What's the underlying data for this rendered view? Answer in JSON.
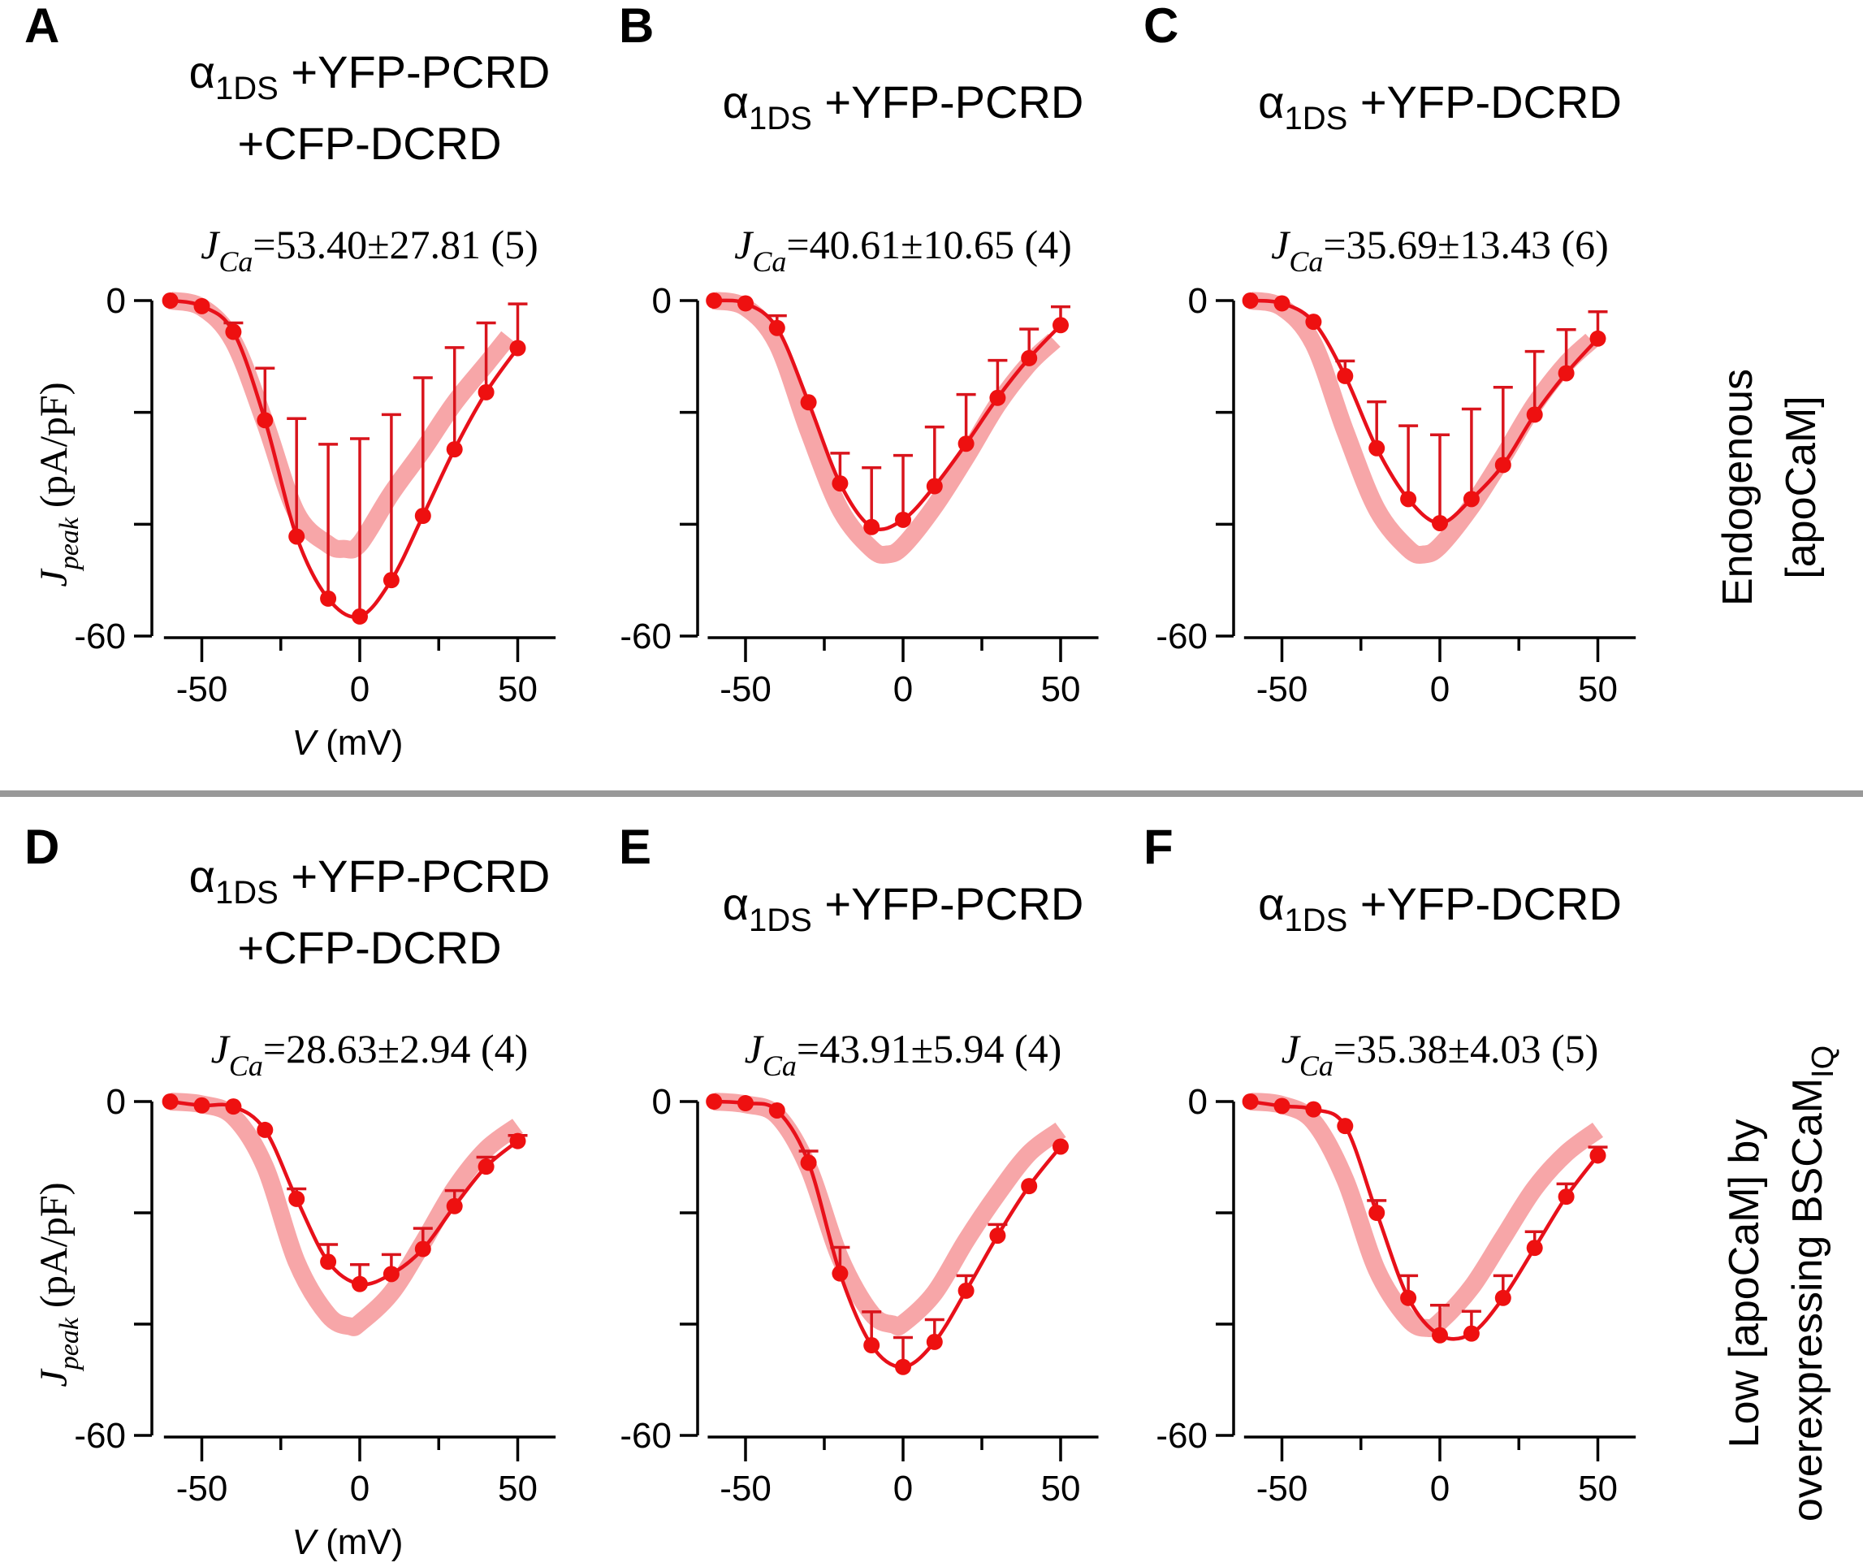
{
  "figure": {
    "row_labels": {
      "top": {
        "line1": "Endogenous",
        "line2": "[apoCaM]"
      },
      "bottom": {
        "line1": "Low [apoCaM] by",
        "line2": "overexpressing BSCaM",
        "line2_sub": "IQ"
      }
    },
    "colors": {
      "data": "#ee1010",
      "reference": "#f7a6a8",
      "divider": "#999999"
    }
  },
  "chart_data": [
    {
      "panel": "A",
      "type": "line",
      "title": {
        "alpha": "α",
        "alpha_sub": "1DS",
        "line1": " +YFP-PCRD",
        "line2": "+CFP-DCRD"
      },
      "annotation": {
        "prefix": "J",
        "sub": "Ca",
        "text": "=53.40±27.81 (5)"
      },
      "xlabel": {
        "var": "V",
        "unit": " (mV)"
      },
      "ylabel": {
        "var": "J",
        "sub": "peak",
        "unit": "  (pA/pF)"
      },
      "xlim": [
        -62,
        62
      ],
      "ylim": [
        -60,
        0
      ],
      "xticks": [
        -50,
        -25,
        0,
        25,
        50
      ],
      "xticklabels": [
        "-50",
        "",
        "0",
        "",
        "50"
      ],
      "yticks": [
        0,
        -20,
        -40,
        -60
      ],
      "yticklabels": [
        "0",
        "",
        "",
        "-60"
      ],
      "x": [
        -60,
        -50,
        -40,
        -30,
        -20,
        -10,
        0,
        10,
        20,
        30,
        40,
        50
      ],
      "series": [
        {
          "name": "mean",
          "values": [
            0,
            -1.0,
            -5.6,
            -21.4,
            -42.2,
            -53.3,
            -56.5,
            -50.0,
            -38.5,
            -26.6,
            -16.4,
            -8.5
          ],
          "error_top": [
            0,
            -1.0,
            -4.0,
            -12.1,
            -21.1,
            -25.7,
            -24.7,
            -20.4,
            -13.8,
            -8.4,
            -4.0,
            -0.6
          ]
        },
        {
          "name": "reference",
          "x": [
            -60,
            -50,
            -40,
            -30,
            -20,
            -10,
            -5,
            0,
            10,
            20,
            30,
            40,
            47
          ],
          "values": [
            0,
            -1.2,
            -7.3,
            -21.8,
            -38.0,
            -43.6,
            -44.4,
            -43.5,
            -34.5,
            -26.7,
            -18.3,
            -11.4,
            -6.5
          ]
        }
      ]
    },
    {
      "panel": "B",
      "type": "line",
      "title": {
        "alpha": "α",
        "alpha_sub": "1DS",
        "line1": " +YFP-PCRD",
        "line2": ""
      },
      "annotation": {
        "prefix": "J",
        "sub": "Ca",
        "text": "=40.61±10.65 (4)"
      },
      "xlim": [
        -62,
        62
      ],
      "ylim": [
        -60,
        0
      ],
      "xticks": [
        -50,
        -25,
        0,
        25,
        50
      ],
      "xticklabels": [
        "-50",
        "",
        "0",
        "",
        "50"
      ],
      "yticks": [
        0,
        -20,
        -40,
        -60
      ],
      "yticklabels": [
        "0",
        "",
        "",
        "-60"
      ],
      "x": [
        -60,
        -50,
        -40,
        -30,
        -20,
        -10,
        0,
        10,
        20,
        30,
        40,
        50
      ],
      "series": [
        {
          "name": "mean",
          "values": [
            0,
            -0.5,
            -4.9,
            -18.2,
            -32.7,
            -40.5,
            -39.2,
            -33.2,
            -25.6,
            -17.4,
            -10.3,
            -4.4
          ],
          "error_top": [
            0,
            -0.5,
            -2.7,
            -18.2,
            -27.3,
            -29.9,
            -27.7,
            -22.6,
            -16.8,
            -10.7,
            -5.1,
            -1.1
          ]
        },
        {
          "name": "reference",
          "x": [
            -60,
            -50,
            -40,
            -30,
            -20,
            -10,
            -5,
            0,
            10,
            20,
            30,
            40,
            48
          ],
          "values": [
            0,
            -1.2,
            -7.7,
            -23.3,
            -37.3,
            -44.4,
            -45.4,
            -43.9,
            -36.8,
            -28.0,
            -18.6,
            -11.3,
            -7.1
          ]
        }
      ]
    },
    {
      "panel": "C",
      "type": "line",
      "title": {
        "alpha": "α",
        "alpha_sub": "1DS",
        "line1": " +YFP-DCRD",
        "line2": ""
      },
      "annotation": {
        "prefix": "J",
        "sub": "Ca",
        "text": "=35.69±13.43 (6)"
      },
      "xlim": [
        -62,
        62
      ],
      "ylim": [
        -60,
        0
      ],
      "xticks": [
        -50,
        -25,
        0,
        25,
        50
      ],
      "xticklabels": [
        "-50",
        "",
        "0",
        "",
        "50"
      ],
      "yticks": [
        0,
        -20,
        -40,
        -60
      ],
      "yticklabels": [
        "0",
        "",
        "",
        "-60"
      ],
      "x": [
        -60,
        -50,
        -40,
        -30,
        -20,
        -10,
        0,
        10,
        20,
        30,
        40,
        50
      ],
      "series": [
        {
          "name": "mean",
          "values": [
            0,
            -0.5,
            -3.8,
            -13.5,
            -26.4,
            -35.5,
            -39.8,
            -35.5,
            -29.4,
            -20.4,
            -13.0,
            -6.8
          ],
          "error_top": [
            0,
            -0.5,
            -3.8,
            -10.8,
            -18.1,
            -22.4,
            -24.0,
            -19.4,
            -15.5,
            -9.1,
            -5.2,
            -2.0
          ]
        },
        {
          "name": "reference",
          "x": [
            -60,
            -50,
            -40,
            -30,
            -20,
            -10,
            -5,
            0,
            10,
            20,
            30,
            40,
            48
          ],
          "values": [
            0,
            -1.2,
            -7.7,
            -23.3,
            -37.3,
            -44.4,
            -45.4,
            -43.9,
            -36.8,
            -28.0,
            -18.6,
            -11.3,
            -7.1
          ]
        }
      ]
    },
    {
      "panel": "D",
      "type": "line",
      "title": {
        "alpha": "α",
        "alpha_sub": "1DS",
        "line1": " +YFP-PCRD",
        "line2": "+CFP-DCRD"
      },
      "annotation": {
        "prefix": "J",
        "sub": "Ca",
        "text": "=28.63±2.94 (4)"
      },
      "xlabel": {
        "var": "V",
        "unit": " (mV)"
      },
      "ylabel": {
        "var": "J",
        "sub": "peak",
        "unit": " (pA/pF)"
      },
      "xlim": [
        -62,
        62
      ],
      "ylim": [
        -60,
        0
      ],
      "xticks": [
        -50,
        -25,
        0,
        25,
        50
      ],
      "xticklabels": [
        "-50",
        "",
        "0",
        "",
        "50"
      ],
      "yticks": [
        0,
        -20,
        -40,
        -60
      ],
      "yticklabels": [
        "0",
        "",
        "",
        "-60"
      ],
      "x": [
        -60,
        -50,
        -40,
        -30,
        -20,
        -10,
        0,
        10,
        20,
        30,
        40,
        50
      ],
      "series": [
        {
          "name": "mean",
          "values": [
            0,
            -0.7,
            -0.9,
            -5.1,
            -17.5,
            -28.8,
            -32.8,
            -31.0,
            -26.5,
            -18.8,
            -11.7,
            -7.1
          ],
          "error_top": [
            0,
            -0.7,
            -0.9,
            -5.1,
            -15.7,
            -25.7,
            -29.3,
            -27.5,
            -22.8,
            -16.0,
            -10.0,
            -6.1
          ]
        },
        {
          "name": "reference",
          "x": [
            -60,
            -50,
            -40,
            -30,
            -20,
            -10,
            -3,
            0,
            10,
            20,
            30,
            40,
            50
          ],
          "values": [
            0,
            -0.5,
            -2.7,
            -11.7,
            -28.8,
            -38.4,
            -40.4,
            -39.8,
            -34.4,
            -25.4,
            -15.7,
            -8.6,
            -4.4
          ]
        }
      ]
    },
    {
      "panel": "E",
      "type": "line",
      "title": {
        "alpha": "α",
        "alpha_sub": "1DS",
        "line1": " +YFP-PCRD",
        "line2": ""
      },
      "annotation": {
        "prefix": "J",
        "sub": "Ca",
        "text": "=43.91±5.94 (4)"
      },
      "xlim": [
        -62,
        62
      ],
      "ylim": [
        -60,
        0
      ],
      "xticks": [
        -50,
        -25,
        0,
        25,
        50
      ],
      "xticklabels": [
        "-50",
        "",
        "0",
        "",
        "50"
      ],
      "yticks": [
        0,
        -20,
        -40,
        -60
      ],
      "yticklabels": [
        "0",
        "",
        "",
        "-60"
      ],
      "x": [
        -60,
        -50,
        -40,
        -30,
        -20,
        -10,
        0,
        10,
        20,
        30,
        40,
        50
      ],
      "series": [
        {
          "name": "mean",
          "values": [
            0,
            -0.3,
            -1.6,
            -11.0,
            -30.9,
            -43.8,
            -47.7,
            -43.2,
            -34.0,
            -24.1,
            -15.2,
            -8.1
          ],
          "error_top": [
            0,
            -0.3,
            -1.6,
            -8.9,
            -26.2,
            -37.8,
            -42.4,
            -39.2,
            -31.3,
            -22.1,
            -15.2,
            -8.1
          ]
        },
        {
          "name": "reference",
          "x": [
            -60,
            -50,
            -40,
            -30,
            -20,
            -10,
            -3,
            0,
            10,
            20,
            30,
            40,
            50
          ],
          "values": [
            0,
            -0.5,
            -2.5,
            -11.9,
            -28.1,
            -38.1,
            -40.1,
            -39.9,
            -34.4,
            -25.0,
            -16.6,
            -9.3,
            -5.1
          ]
        }
      ]
    },
    {
      "panel": "F",
      "type": "line",
      "title": {
        "alpha": "α",
        "alpha_sub": "1DS",
        "line1": " +YFP-DCRD",
        "line2": ""
      },
      "annotation": {
        "prefix": "J",
        "sub": "Ca",
        "text": "=35.38±4.03 (5)"
      },
      "xlim": [
        -62,
        62
      ],
      "ylim": [
        -60,
        0
      ],
      "xticks": [
        -50,
        -25,
        0,
        25,
        50
      ],
      "xticklabels": [
        "-50",
        "",
        "0",
        "",
        "50"
      ],
      "yticks": [
        0,
        -20,
        -40,
        -60
      ],
      "yticklabels": [
        "0",
        "",
        "",
        "-60"
      ],
      "x": [
        -60,
        -50,
        -40,
        -30,
        -20,
        -10,
        0,
        10,
        20,
        30,
        40,
        50
      ],
      "series": [
        {
          "name": "mean",
          "values": [
            0,
            -0.8,
            -1.4,
            -4.4,
            -20.0,
            -35.3,
            -42.0,
            -41.7,
            -35.3,
            -26.3,
            -17.1,
            -9.7
          ],
          "error_top": [
            0,
            -0.8,
            -1.4,
            -4.4,
            -17.8,
            -31.3,
            -36.6,
            -37.7,
            -31.3,
            -23.4,
            -14.8,
            -8.2
          ]
        },
        {
          "name": "reference",
          "x": [
            -60,
            -50,
            -40,
            -30,
            -20,
            -10,
            -4,
            0,
            10,
            20,
            30,
            40,
            50
          ],
          "values": [
            0,
            -0.6,
            -3.6,
            -14.0,
            -30.2,
            -39.1,
            -40.7,
            -39.6,
            -33.4,
            -24.5,
            -15.6,
            -9.3,
            -5.1
          ]
        }
      ]
    }
  ]
}
